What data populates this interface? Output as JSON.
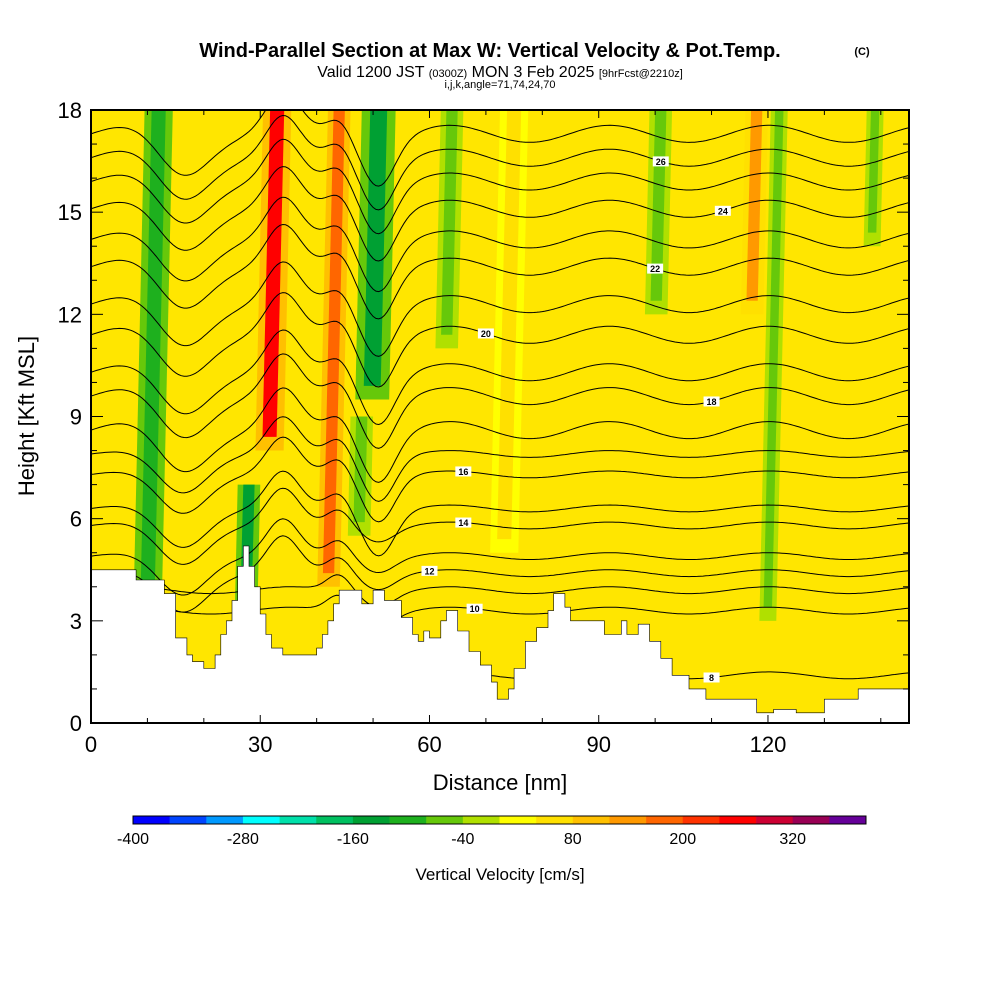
{
  "title_main": "Wind-Parallel Section at Max W: Vertical Velocity & Pot.Temp.",
  "title_mark": "(C)",
  "subtitle": {
    "pre": "Valid 1200 JST ",
    "paren1": "(0300Z)",
    "mid": " MON 3 Feb 2025 ",
    "bracket": "[9hrFcst@2210z]"
  },
  "meta_line": "i,j,k,angle=71,74,24,70",
  "colors": {
    "colorbar": [
      "#0000ff",
      "#0044ff",
      "#0099ff",
      "#00ffff",
      "#00e0aa",
      "#00c060",
      "#00a033",
      "#1eb01e",
      "#66c80a",
      "#b0e000",
      "#ffff00",
      "#ffe000",
      "#ffc000",
      "#ff9900",
      "#ff6600",
      "#ff3300",
      "#ff0000",
      "#cc0033",
      "#990055",
      "#660099"
    ],
    "background_field": "#ffe600",
    "terrain": "#ffffff",
    "contour": "#000000"
  },
  "chart_data": {
    "type": "heatmap",
    "xlabel": "Distance [nm]",
    "ylabel": "Height [Kft MSL]",
    "xlim": [
      0,
      145
    ],
    "ylim": [
      0,
      18
    ],
    "x_ticks": [
      0,
      30,
      60,
      90,
      120
    ],
    "y_ticks": [
      0,
      3,
      6,
      9,
      12,
      15,
      18
    ],
    "colorbar": {
      "label": "Vertical Velocity [cm/s]",
      "levels": [
        -400,
        -360,
        -320,
        -280,
        -240,
        -200,
        -160,
        -120,
        -80,
        -40,
        0,
        40,
        80,
        120,
        160,
        200,
        240,
        280,
        320,
        360
      ],
      "tick_labels": [
        "-400",
        "-280",
        "-160",
        "-40",
        "80",
        "200",
        "320"
      ]
    },
    "vertical_velocity_bands": [
      {
        "x": 12,
        "width": 5,
        "top": 18,
        "bottom": 2.5,
        "w": -100
      },
      {
        "x": 28,
        "width": 4,
        "top": 7,
        "bottom": 3.5,
        "w": -150
      },
      {
        "x": 33,
        "width": 5,
        "top": 18,
        "bottom": 8,
        "w": 240
      },
      {
        "x": 44,
        "width": 4,
        "top": 18,
        "bottom": 4,
        "w": 180
      },
      {
        "x": 51,
        "width": 6,
        "top": 18,
        "bottom": 9.5,
        "w": -160
      },
      {
        "x": 48,
        "width": 4,
        "top": 9,
        "bottom": 5.5,
        "w": -60
      },
      {
        "x": 64,
        "width": 4,
        "top": 18,
        "bottom": 11,
        "w": -80
      },
      {
        "x": 75,
        "width": 5,
        "top": 18,
        "bottom": 5,
        "w": 60
      },
      {
        "x": 101,
        "width": 4,
        "top": 18,
        "bottom": 12,
        "w": -60
      },
      {
        "x": 118,
        "width": 4,
        "top": 18,
        "bottom": 12,
        "w": 120
      },
      {
        "x": 122,
        "width": 3,
        "top": 18,
        "bottom": 3,
        "w": -60
      },
      {
        "x": 139,
        "width": 3,
        "top": 18,
        "bottom": 14,
        "w": -60
      }
    ],
    "terrain_height_kft": [
      [
        0,
        4.5
      ],
      [
        8,
        4.5
      ],
      [
        8,
        4.2
      ],
      [
        13,
        4.2
      ],
      [
        13,
        3.8
      ],
      [
        15,
        3.8
      ],
      [
        15,
        2.5
      ],
      [
        17,
        2.5
      ],
      [
        17,
        2.0
      ],
      [
        18,
        2.0
      ],
      [
        18,
        1.8
      ],
      [
        20,
        1.8
      ],
      [
        20,
        1.6
      ],
      [
        22,
        1.6
      ],
      [
        22,
        2.0
      ],
      [
        23,
        2.0
      ],
      [
        23,
        2.6
      ],
      [
        24,
        2.6
      ],
      [
        24,
        3.0
      ],
      [
        25,
        3.0
      ],
      [
        25,
        3.6
      ],
      [
        26,
        3.6
      ],
      [
        26,
        4.6
      ],
      [
        27,
        4.6
      ],
      [
        27,
        5.2
      ],
      [
        28,
        5.2
      ],
      [
        28,
        4.6
      ],
      [
        29,
        4.6
      ],
      [
        29,
        4.0
      ],
      [
        30,
        4.0
      ],
      [
        30,
        3.2
      ],
      [
        31,
        3.2
      ],
      [
        31,
        2.6
      ],
      [
        32,
        2.6
      ],
      [
        32,
        2.2
      ],
      [
        34,
        2.2
      ],
      [
        34,
        2.0
      ],
      [
        40,
        2.0
      ],
      [
        40,
        2.2
      ],
      [
        41,
        2.2
      ],
      [
        41,
        2.6
      ],
      [
        42,
        2.6
      ],
      [
        42,
        3.0
      ],
      [
        43,
        3.0
      ],
      [
        43,
        3.5
      ],
      [
        44,
        3.5
      ],
      [
        44,
        3.9
      ],
      [
        48,
        3.9
      ],
      [
        48,
        3.5
      ],
      [
        50,
        3.5
      ],
      [
        50,
        3.9
      ],
      [
        52,
        3.9
      ],
      [
        52,
        3.6
      ],
      [
        55,
        3.6
      ],
      [
        55,
        3.1
      ],
      [
        57,
        3.1
      ],
      [
        57,
        2.6
      ],
      [
        58,
        2.6
      ],
      [
        58,
        2.4
      ],
      [
        59,
        2.4
      ],
      [
        59,
        2.7
      ],
      [
        60,
        2.7
      ],
      [
        60,
        2.5
      ],
      [
        62,
        2.5
      ],
      [
        62,
        3.0
      ],
      [
        63,
        3.0
      ],
      [
        63,
        3.3
      ],
      [
        65,
        3.3
      ],
      [
        65,
        2.7
      ],
      [
        67,
        2.7
      ],
      [
        67,
        2.1
      ],
      [
        69,
        2.1
      ],
      [
        69,
        1.7
      ],
      [
        71,
        1.7
      ],
      [
        71,
        1.2
      ],
      [
        72,
        1.2
      ],
      [
        72,
        0.7
      ],
      [
        74,
        0.7
      ],
      [
        74,
        1.0
      ],
      [
        75,
        1.0
      ],
      [
        75,
        1.6
      ],
      [
        77,
        1.6
      ],
      [
        77,
        2.4
      ],
      [
        79,
        2.4
      ],
      [
        79,
        2.8
      ],
      [
        81,
        2.8
      ],
      [
        81,
        3.3
      ],
      [
        82,
        3.3
      ],
      [
        82,
        3.8
      ],
      [
        84,
        3.8
      ],
      [
        84,
        3.4
      ],
      [
        85,
        3.4
      ],
      [
        85,
        3.0
      ],
      [
        91,
        3.0
      ],
      [
        91,
        2.6
      ],
      [
        94,
        2.6
      ],
      [
        94,
        3.0
      ],
      [
        95,
        3.0
      ],
      [
        95,
        2.6
      ],
      [
        97,
        2.6
      ],
      [
        97,
        2.9
      ],
      [
        99,
        2.9
      ],
      [
        99,
        2.4
      ],
      [
        101,
        2.4
      ],
      [
        101,
        1.9
      ],
      [
        103,
        1.9
      ],
      [
        103,
        1.4
      ],
      [
        106,
        1.4
      ],
      [
        106,
        1.0
      ],
      [
        109,
        1.0
      ],
      [
        109,
        0.7
      ],
      [
        118,
        0.7
      ],
      [
        118,
        0.3
      ],
      [
        121,
        0.3
      ],
      [
        121,
        0.4
      ],
      [
        125,
        0.4
      ],
      [
        125,
        0.3
      ],
      [
        130,
        0.3
      ],
      [
        130,
        0.7
      ],
      [
        136,
        0.7
      ],
      [
        136,
        1.0
      ],
      [
        145,
        1.0
      ]
    ],
    "theta_contours": [
      {
        "label": "8",
        "base": 1.4,
        "label_x": 110
      },
      {
        "label": "10",
        "base": 3.3,
        "label_x": 68
      },
      {
        "label": "",
        "base": 3.9,
        "label_x": null
      },
      {
        "label": "12",
        "base": 4.4,
        "label_x": 60
      },
      {
        "label": "",
        "base": 4.9,
        "label_x": null
      },
      {
        "label": "14",
        "base": 5.8,
        "label_x": 66
      },
      {
        "label": "",
        "base": 6.3,
        "label_x": null
      },
      {
        "label": "16",
        "base": 7.3,
        "label_x": 66
      },
      {
        "label": "",
        "base": 7.9,
        "label_x": null
      },
      {
        "label": "",
        "base": 8.6,
        "label_x": null
      },
      {
        "label": "18",
        "base": 9.6,
        "label_x": 110
      },
      {
        "label": "",
        "base": 10.3,
        "label_x": null
      },
      {
        "label": "20",
        "base": 11.4,
        "label_x": 70
      },
      {
        "label": "",
        "base": 12.3,
        "label_x": null
      },
      {
        "label": "22",
        "base": 13.4,
        "label_x": 100
      },
      {
        "label": "",
        "base": 14.2,
        "label_x": null
      },
      {
        "label": "24",
        "base": 15.1,
        "label_x": 112
      },
      {
        "label": "",
        "base": 15.9,
        "label_x": null
      },
      {
        "label": "26",
        "base": 16.6,
        "label_x": 101
      },
      {
        "label": "",
        "base": 17.3,
        "label_x": null
      }
    ]
  }
}
